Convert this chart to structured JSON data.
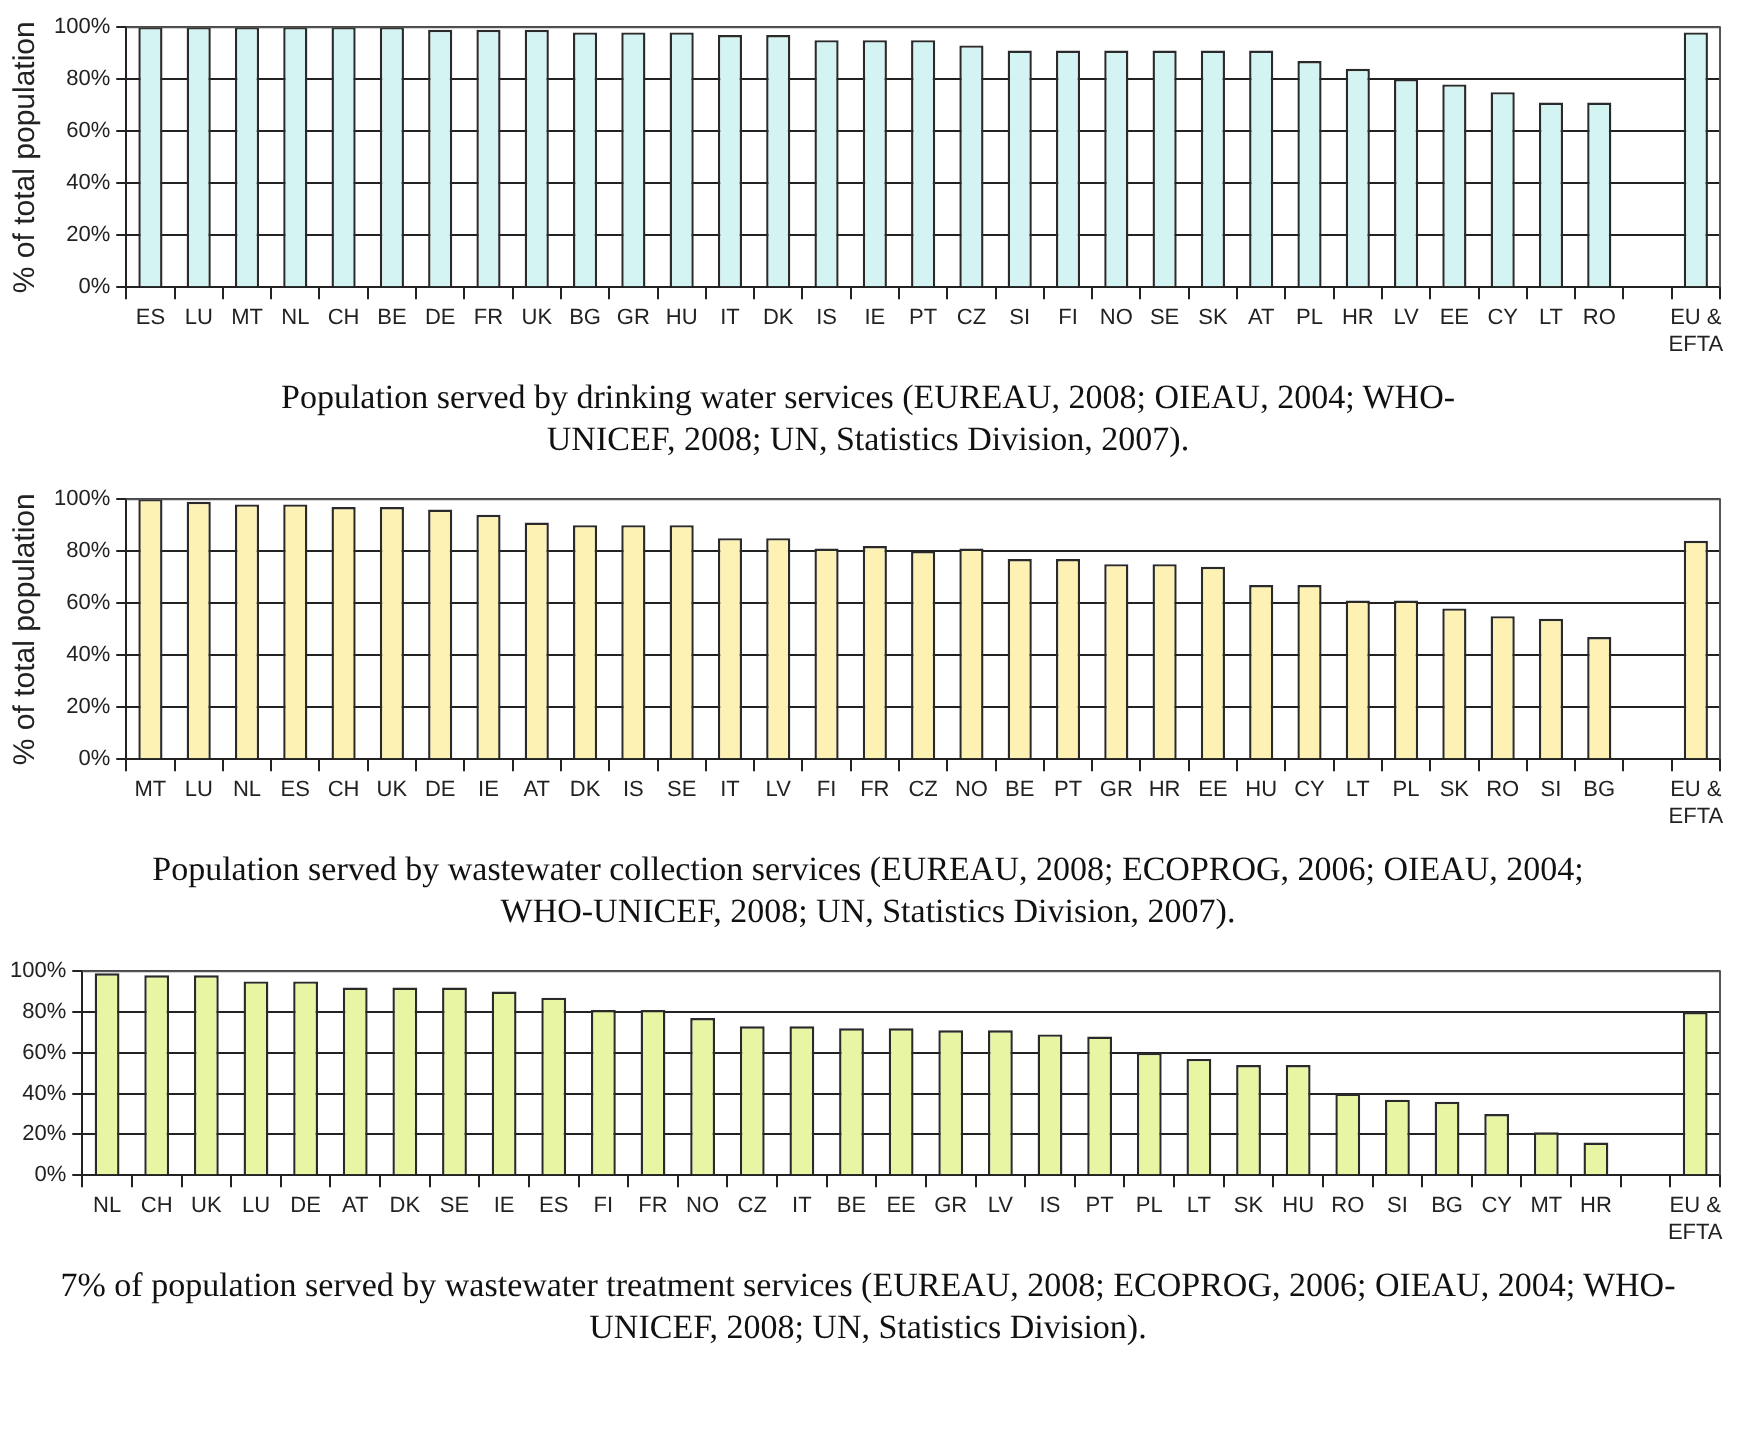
{
  "chart_data": [
    {
      "type": "bar",
      "title": "Population served by drinking water services (EUREAU, 2008; OIEAU, 2004; WHO-UNICEF, 2008; UN, Statistics Division, 2007).",
      "ylabel": "% of total population",
      "categories": [
        "ES",
        "LU",
        "MT",
        "NL",
        "CH",
        "BE",
        "DE",
        "FR",
        "UK",
        "BG",
        "GR",
        "HU",
        "IT",
        "DK",
        "IS",
        "IE",
        "PT",
        "CZ",
        "SI",
        "FI",
        "NO",
        "SE",
        "SK",
        "AT",
        "PL",
        "HR",
        "LV",
        "EE",
        "CY",
        "LT",
        "RO",
        null,
        "EU & EFTA"
      ],
      "values": [
        100,
        100,
        100,
        100,
        100,
        100,
        99,
        99,
        99,
        98,
        98,
        98,
        97,
        97,
        95,
        95,
        95,
        93,
        91,
        91,
        91,
        91,
        91,
        91,
        87,
        84,
        80,
        78,
        75,
        71,
        71,
        null,
        98
      ],
      "color": "#d4f3f3",
      "ylim": [
        0,
        100
      ],
      "yticks": [
        {
          "value": 0,
          "label": "0%"
        },
        {
          "value": 20,
          "label": "20%"
        },
        {
          "value": 40,
          "label": "40%"
        },
        {
          "value": 60,
          "label": "60%"
        },
        {
          "value": 80,
          "label": "80%"
        },
        {
          "value": 100,
          "label": "100%"
        }
      ],
      "grid": "y"
    },
    {
      "type": "bar",
      "title": "Population served by wastewater collection services (EUREAU, 2008; ECOPROG, 2006; OIEAU, 2004; WHO-UNICEF, 2008; UN, Statistics Division, 2007).",
      "ylabel": "% of total population",
      "categories": [
        "MT",
        "LU",
        "NL",
        "ES",
        "CH",
        "UK",
        "DE",
        "IE",
        "AT",
        "DK",
        "IS",
        "SE",
        "IT",
        "LV",
        "FI",
        "FR",
        "CZ",
        "NO",
        "BE",
        "PT",
        "GR",
        "HR",
        "EE",
        "HU",
        "CY",
        "LT",
        "PL",
        "SK",
        "RO",
        "SI",
        "BG",
        null,
        "EU & EFTA"
      ],
      "values": [
        100,
        99,
        98,
        98,
        97,
        97,
        96,
        94,
        91,
        90,
        90,
        90,
        85,
        85,
        81,
        82,
        80,
        81,
        77,
        77,
        75,
        75,
        74,
        67,
        67,
        61,
        61,
        58,
        55,
        54,
        47,
        null,
        84
      ],
      "color": "#fdf1b3",
      "ylim": [
        0,
        100
      ],
      "yticks": [
        {
          "value": 0,
          "label": "0%"
        },
        {
          "value": 20,
          "label": "20%"
        },
        {
          "value": 40,
          "label": "40%"
        },
        {
          "value": 60,
          "label": "60%"
        },
        {
          "value": 80,
          "label": "80%"
        },
        {
          "value": 100,
          "label": "100%"
        }
      ],
      "grid": "y"
    },
    {
      "type": "bar",
      "title": "7% of population served by wastewater treatment services (EUREAU, 2008; ECOPROG, 2006; OIEAU, 2004; WHO-UNICEF, 2008; UN, Statistics Division).",
      "categories": [
        "NL",
        "CH",
        "UK",
        "LU",
        "DE",
        "AT",
        "DK",
        "SE",
        "IE",
        "ES",
        "FI",
        "FR",
        "NO",
        "CZ",
        "IT",
        "BE",
        "EE",
        "GR",
        "LV",
        "IS",
        "PT",
        "PL",
        "LT",
        "SK",
        "HU",
        "RO",
        "SI",
        "BG",
        "CY",
        "MT",
        "HR",
        null,
        "EU & EFTA"
      ],
      "values": [
        99,
        98,
        98,
        95,
        95,
        92,
        92,
        92,
        90,
        87,
        81,
        81,
        77,
        73,
        73,
        72,
        72,
        71,
        71,
        69,
        68,
        60,
        57,
        54,
        54,
        40,
        37,
        36,
        30,
        21,
        16,
        null,
        80
      ],
      "color": "#e8f5a3",
      "ylim": [
        0,
        100
      ],
      "yticks": [
        {
          "value": 0,
          "label": "0%"
        },
        {
          "value": 20,
          "label": "20%"
        },
        {
          "value": 40,
          "label": "40%"
        },
        {
          "value": 60,
          "label": "60%"
        },
        {
          "value": 80,
          "label": "80%"
        },
        {
          "value": 100,
          "label": "100%"
        }
      ],
      "grid": "y"
    }
  ]
}
